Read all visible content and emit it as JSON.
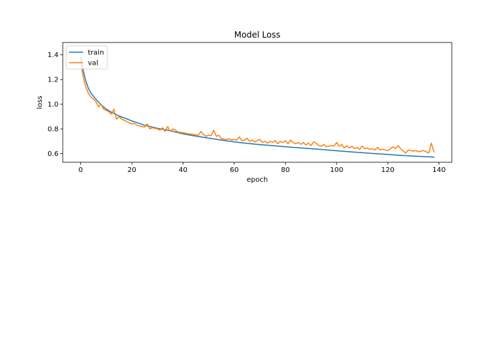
{
  "chart_data": {
    "type": "line",
    "title": "Model Loss",
    "xlabel": "epoch",
    "ylabel": "loss",
    "xlim": [
      -7,
      145
    ],
    "ylim": [
      0.53,
      1.5
    ],
    "xticks": [
      0,
      20,
      40,
      60,
      80,
      100,
      120,
      140
    ],
    "yticks": [
      0.6,
      0.8,
      1.0,
      1.2,
      1.4
    ],
    "ytick_labels": [
      "0.6",
      "0.8",
      "1.0",
      "1.2",
      "1.4"
    ],
    "grid": false,
    "legend": "top-left",
    "series": [
      {
        "name": "train",
        "color": "#1f77b4",
        "anchors": [
          [
            0,
            1.38
          ],
          [
            1,
            1.27
          ],
          [
            2,
            1.19
          ],
          [
            3,
            1.13
          ],
          [
            4,
            1.09
          ],
          [
            6,
            1.04
          ],
          [
            8,
            0.995
          ],
          [
            10,
            0.96
          ],
          [
            12,
            0.935
          ],
          [
            15,
            0.905
          ],
          [
            20,
            0.865
          ],
          [
            25,
            0.83
          ],
          [
            30,
            0.805
          ],
          [
            35,
            0.785
          ],
          [
            40,
            0.76
          ],
          [
            45,
            0.742
          ],
          [
            50,
            0.725
          ],
          [
            55,
            0.71
          ],
          [
            60,
            0.695
          ],
          [
            65,
            0.683
          ],
          [
            70,
            0.673
          ],
          [
            75,
            0.665
          ],
          [
            80,
            0.656
          ],
          [
            85,
            0.648
          ],
          [
            90,
            0.64
          ],
          [
            95,
            0.632
          ],
          [
            100,
            0.623
          ],
          [
            105,
            0.615
          ],
          [
            110,
            0.607
          ],
          [
            115,
            0.6
          ],
          [
            120,
            0.593
          ],
          [
            125,
            0.586
          ],
          [
            130,
            0.58
          ],
          [
            135,
            0.575
          ],
          [
            138,
            0.572
          ]
        ]
      },
      {
        "name": "val",
        "color": "#ff7f0e",
        "anchors": [
          [
            0,
            1.35
          ],
          [
            1,
            1.22
          ],
          [
            2,
            1.14
          ],
          [
            3,
            1.09
          ],
          [
            4,
            1.06
          ],
          [
            5,
            1.04
          ],
          [
            6,
            1.02
          ],
          [
            7,
            0.98
          ],
          [
            8,
            1.0
          ],
          [
            9,
            0.96
          ],
          [
            10,
            0.95
          ],
          [
            11,
            0.94
          ],
          [
            12,
            0.92
          ],
          [
            13,
            0.96
          ],
          [
            14,
            0.88
          ],
          [
            15,
            0.9
          ],
          [
            16,
            0.88
          ],
          [
            17,
            0.87
          ],
          [
            18,
            0.86
          ],
          [
            19,
            0.85
          ],
          [
            20,
            0.84
          ],
          [
            21,
            0.845
          ],
          [
            22,
            0.83
          ],
          [
            24,
            0.82
          ],
          [
            25,
            0.815
          ],
          [
            26,
            0.84
          ],
          [
            27,
            0.8
          ],
          [
            28,
            0.81
          ],
          [
            30,
            0.8
          ],
          [
            31,
            0.79
          ],
          [
            32,
            0.81
          ],
          [
            33,
            0.78
          ],
          [
            34,
            0.82
          ],
          [
            35,
            0.78
          ],
          [
            36,
            0.8
          ],
          [
            37,
            0.79
          ],
          [
            38,
            0.775
          ],
          [
            40,
            0.77
          ],
          [
            42,
            0.76
          ],
          [
            44,
            0.755
          ],
          [
            46,
            0.75
          ],
          [
            47,
            0.78
          ],
          [
            48,
            0.755
          ],
          [
            49,
            0.74
          ],
          [
            50,
            0.75
          ],
          [
            51,
            0.745
          ],
          [
            52,
            0.79
          ],
          [
            53,
            0.74
          ],
          [
            54,
            0.75
          ],
          [
            55,
            0.72
          ],
          [
            57,
            0.715
          ],
          [
            58,
            0.72
          ],
          [
            59,
            0.71
          ],
          [
            60,
            0.715
          ],
          [
            61,
            0.71
          ],
          [
            62,
            0.735
          ],
          [
            63,
            0.705
          ],
          [
            64,
            0.71
          ],
          [
            65,
            0.725
          ],
          [
            66,
            0.7
          ],
          [
            67,
            0.71
          ],
          [
            68,
            0.695
          ],
          [
            70,
            0.715
          ],
          [
            71,
            0.69
          ],
          [
            72,
            0.7
          ],
          [
            73,
            0.685
          ],
          [
            74,
            0.7
          ],
          [
            75,
            0.69
          ],
          [
            76,
            0.705
          ],
          [
            77,
            0.68
          ],
          [
            78,
            0.7
          ],
          [
            79,
            0.69
          ],
          [
            80,
            0.705
          ],
          [
            81,
            0.68
          ],
          [
            82,
            0.71
          ],
          [
            83,
            0.69
          ],
          [
            84,
            0.68
          ],
          [
            85,
            0.69
          ],
          [
            86,
            0.675
          ],
          [
            87,
            0.69
          ],
          [
            88,
            0.67
          ],
          [
            89,
            0.685
          ],
          [
            90,
            0.665
          ],
          [
            91,
            0.695
          ],
          [
            92,
            0.685
          ],
          [
            93,
            0.665
          ],
          [
            94,
            0.66
          ],
          [
            95,
            0.675
          ],
          [
            96,
            0.655
          ],
          [
            97,
            0.66
          ],
          [
            98,
            0.665
          ],
          [
            99,
            0.66
          ],
          [
            100,
            0.69
          ],
          [
            101,
            0.66
          ],
          [
            102,
            0.675
          ],
          [
            103,
            0.645
          ],
          [
            104,
            0.665
          ],
          [
            105,
            0.645
          ],
          [
            106,
            0.66
          ],
          [
            107,
            0.64
          ],
          [
            108,
            0.65
          ],
          [
            109,
            0.635
          ],
          [
            110,
            0.66
          ],
          [
            111,
            0.64
          ],
          [
            112,
            0.645
          ],
          [
            113,
            0.635
          ],
          [
            114,
            0.64
          ],
          [
            115,
            0.63
          ],
          [
            116,
            0.65
          ],
          [
            117,
            0.63
          ],
          [
            118,
            0.635
          ],
          [
            119,
            0.63
          ],
          [
            120,
            0.625
          ],
          [
            121,
            0.64
          ],
          [
            122,
            0.655
          ],
          [
            123,
            0.64
          ],
          [
            124,
            0.665
          ],
          [
            125,
            0.64
          ],
          [
            126,
            0.62
          ],
          [
            127,
            0.605
          ],
          [
            128,
            0.63
          ],
          [
            129,
            0.625
          ],
          [
            130,
            0.62
          ],
          [
            131,
            0.625
          ],
          [
            132,
            0.615
          ],
          [
            133,
            0.62
          ],
          [
            134,
            0.625
          ],
          [
            135,
            0.615
          ],
          [
            136,
            0.605
          ],
          [
            137,
            0.685
          ],
          [
            138,
            0.615
          ]
        ]
      }
    ]
  }
}
